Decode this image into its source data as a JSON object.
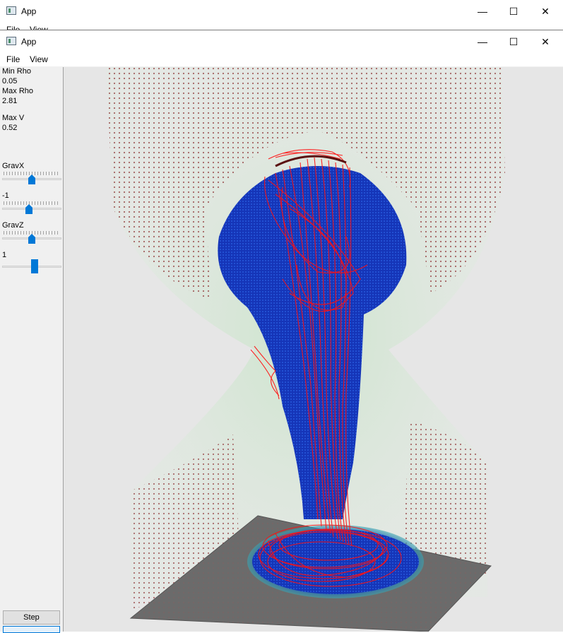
{
  "back_window": {
    "title": "App",
    "menu": [
      "File",
      "View"
    ]
  },
  "window": {
    "title": "App",
    "controls": {
      "minimize": "—",
      "maximize": "☐",
      "close": "✕"
    },
    "menu": {
      "file": "File",
      "view": "View"
    }
  },
  "panel": {
    "min_rho_label": "Min Rho",
    "min_rho_value": "0.05",
    "max_rho_label": "Max Rho",
    "max_rho_value": "2.81",
    "max_v_label": "Max V",
    "max_v_value": "0.52",
    "gravx_label": "GravX",
    "gravx_value": "-1",
    "gravz_label": "GravZ",
    "gravz_value": "1",
    "sliders": {
      "gravx": 0.5,
      "gravy": 0.45,
      "gravz": 0.5,
      "extra": 0.55
    },
    "step_label": "Step"
  },
  "colors": {
    "accent": "#0078d7",
    "fluid_blue": "#1a3fc0",
    "streamline": "#ff0000",
    "particle_dot": "#a05a5a",
    "floor": "#6a6a6a",
    "bg_green": "#cfe8cf"
  }
}
